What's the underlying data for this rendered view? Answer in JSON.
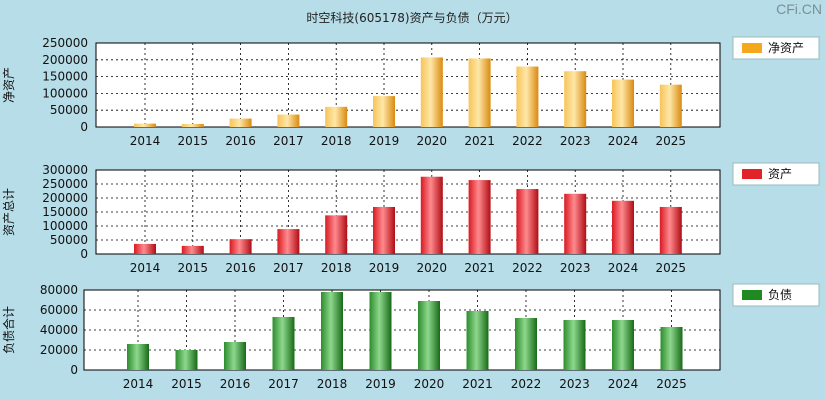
{
  "title": "时空科技(605178)资产与负债（万元）",
  "watermark": "CFi.CN",
  "chart_data": [
    {
      "type": "bar",
      "ylabel": "净资产",
      "legend": "净资产",
      "legend_placement": "right",
      "color": "#f5a81c",
      "ylim": [
        0,
        250000
      ],
      "yticks": [
        "0",
        "50000",
        "100000",
        "150000",
        "200000",
        "250000"
      ],
      "categories": [
        "2014",
        "2015",
        "2016",
        "2017",
        "2018",
        "2019",
        "2020",
        "2021",
        "2022",
        "2023",
        "2024",
        "2025"
      ],
      "values": [
        10000,
        9000,
        25000,
        37000,
        60000,
        92000,
        207000,
        204000,
        180000,
        166000,
        141000,
        126000
      ],
      "grid": true
    },
    {
      "type": "bar",
      "ylabel": "资产总计",
      "legend": "资产",
      "legend_placement": "right",
      "color": "#e2232a",
      "ylim": [
        0,
        300000
      ],
      "yticks": [
        "0",
        "50000",
        "100000",
        "150000",
        "200000",
        "250000",
        "300000"
      ],
      "categories": [
        "2014",
        "2015",
        "2016",
        "2017",
        "2018",
        "2019",
        "2020",
        "2021",
        "2022",
        "2023",
        "2024",
        "2025"
      ],
      "values": [
        36000,
        29000,
        53000,
        89000,
        138000,
        168000,
        276000,
        264000,
        232000,
        215000,
        190000,
        168000
      ],
      "grid": true
    },
    {
      "type": "bar",
      "ylabel": "负债合计",
      "legend": "负债",
      "legend_placement": "right",
      "color": "#1f8a1f",
      "ylim": [
        0,
        80000
      ],
      "yticks": [
        "0",
        "20000",
        "40000",
        "60000",
        "80000"
      ],
      "categories": [
        "2014",
        "2015",
        "2016",
        "2017",
        "2018",
        "2019",
        "2020",
        "2021",
        "2022",
        "2023",
        "2024",
        "2025"
      ],
      "values": [
        26000,
        20000,
        28000,
        53000,
        78000,
        78000,
        69000,
        59000,
        52000,
        50000,
        50000,
        43000
      ],
      "grid": true
    }
  ]
}
